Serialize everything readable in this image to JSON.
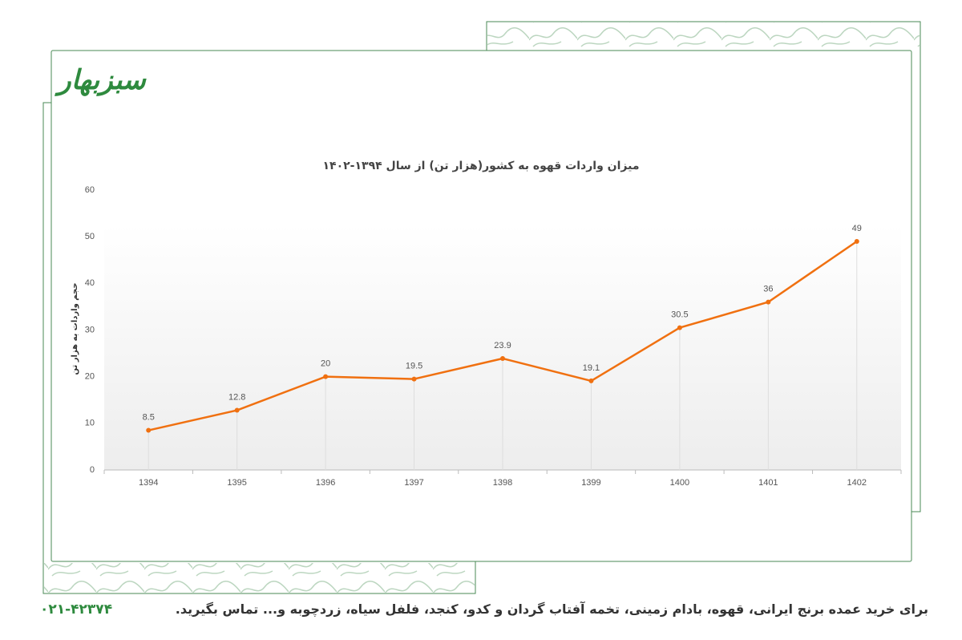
{
  "logo": "سبزبهار",
  "chart_data": {
    "type": "line",
    "title": "میزان واردات قهوه به کشور(هزار تن) از سال ۱۳۹۴-۱۴۰۲",
    "y_label": "حجم واردات به هزار تن",
    "categories": [
      "1394",
      "1395",
      "1396",
      "1397",
      "1398",
      "1399",
      "1400",
      "1401",
      "1402"
    ],
    "values": [
      8.5,
      12.8,
      20,
      19.5,
      23.9,
      19.1,
      30.5,
      36,
      49
    ],
    "color": "#f07010",
    "ylim": [
      0,
      60
    ],
    "yticks": [
      0,
      10,
      20,
      30,
      40,
      50,
      60
    ]
  },
  "footer": {
    "text": "برای خرید عمده برنج ایرانی، قهوه، بادام زمینی، تخمه آفتاب گردان و کدو، کنجد، فلفل سیاه، زردچوبه و... تماس بگیرید.",
    "phone": "۰۲۱-۴۲۳۷۴"
  }
}
